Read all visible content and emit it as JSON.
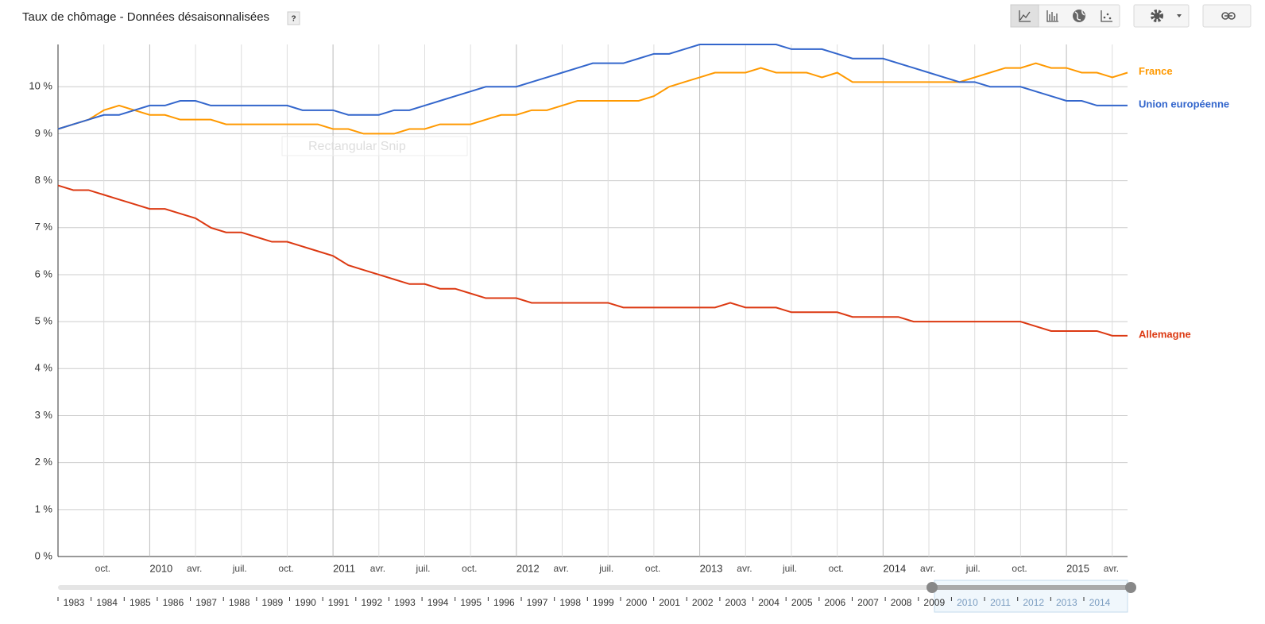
{
  "chart_data": {
    "type": "line",
    "title": "Taux de chômage - Données désaisonnalisées",
    "help": "?",
    "overlay_text": "Rectangular Snip",
    "x": [
      "2009-07",
      "2009-08",
      "2009-09",
      "2009-10",
      "2009-11",
      "2009-12",
      "2010-01",
      "2010-02",
      "2010-03",
      "2010-04",
      "2010-05",
      "2010-06",
      "2010-07",
      "2010-08",
      "2010-09",
      "2010-10",
      "2010-11",
      "2010-12",
      "2011-01",
      "2011-02",
      "2011-03",
      "2011-04",
      "2011-05",
      "2011-06",
      "2011-07",
      "2011-08",
      "2011-09",
      "2011-10",
      "2011-11",
      "2011-12",
      "2012-01",
      "2012-02",
      "2012-03",
      "2012-04",
      "2012-05",
      "2012-06",
      "2012-07",
      "2012-08",
      "2012-09",
      "2012-10",
      "2012-11",
      "2012-12",
      "2013-01",
      "2013-02",
      "2013-03",
      "2013-04",
      "2013-05",
      "2013-06",
      "2013-07",
      "2013-08",
      "2013-09",
      "2013-10",
      "2013-11",
      "2013-12",
      "2014-01",
      "2014-02",
      "2014-03",
      "2014-04",
      "2014-05",
      "2014-06",
      "2014-07",
      "2014-08",
      "2014-09",
      "2014-10",
      "2014-11",
      "2014-12",
      "2015-01",
      "2015-02",
      "2015-03",
      "2015-04",
      "2015-05"
    ],
    "series": [
      {
        "name": "France",
        "color": "#ff9900",
        "values": [
          9.1,
          9.2,
          9.3,
          9.5,
          9.6,
          9.5,
          9.4,
          9.4,
          9.3,
          9.3,
          9.3,
          9.2,
          9.2,
          9.2,
          9.2,
          9.2,
          9.2,
          9.2,
          9.1,
          9.1,
          9.0,
          9.0,
          9.0,
          9.1,
          9.1,
          9.2,
          9.2,
          9.2,
          9.3,
          9.4,
          9.4,
          9.5,
          9.5,
          9.6,
          9.7,
          9.7,
          9.7,
          9.7,
          9.7,
          9.8,
          10.0,
          10.1,
          10.2,
          10.3,
          10.3,
          10.3,
          10.4,
          10.3,
          10.3,
          10.3,
          10.2,
          10.3,
          10.1,
          10.1,
          10.1,
          10.1,
          10.1,
          10.1,
          10.1,
          10.1,
          10.2,
          10.3,
          10.4,
          10.4,
          10.5,
          10.4,
          10.4,
          10.3,
          10.3,
          10.2,
          10.3
        ]
      },
      {
        "name": "Union européenne",
        "color": "#3366cc",
        "values": [
          9.1,
          9.2,
          9.3,
          9.4,
          9.4,
          9.5,
          9.6,
          9.6,
          9.7,
          9.7,
          9.6,
          9.6,
          9.6,
          9.6,
          9.6,
          9.6,
          9.5,
          9.5,
          9.5,
          9.4,
          9.4,
          9.4,
          9.5,
          9.5,
          9.6,
          9.7,
          9.8,
          9.9,
          10.0,
          10.0,
          10.0,
          10.1,
          10.2,
          10.3,
          10.4,
          10.5,
          10.5,
          10.5,
          10.6,
          10.7,
          10.7,
          10.8,
          10.9,
          10.9,
          10.9,
          10.9,
          10.9,
          10.9,
          10.8,
          10.8,
          10.8,
          10.7,
          10.6,
          10.6,
          10.6,
          10.5,
          10.4,
          10.3,
          10.2,
          10.1,
          10.1,
          10.0,
          10.0,
          10.0,
          9.9,
          9.8,
          9.7,
          9.7,
          9.6,
          9.6,
          9.6
        ]
      },
      {
        "name": "Allemagne",
        "color": "#dc3912",
        "values": [
          7.9,
          7.8,
          7.8,
          7.7,
          7.6,
          7.5,
          7.4,
          7.4,
          7.3,
          7.2,
          7.0,
          6.9,
          6.9,
          6.8,
          6.7,
          6.7,
          6.6,
          6.5,
          6.4,
          6.2,
          6.1,
          6.0,
          5.9,
          5.8,
          5.8,
          5.7,
          5.7,
          5.6,
          5.5,
          5.5,
          5.5,
          5.4,
          5.4,
          5.4,
          5.4,
          5.4,
          5.4,
          5.3,
          5.3,
          5.3,
          5.3,
          5.3,
          5.3,
          5.3,
          5.4,
          5.3,
          5.3,
          5.3,
          5.2,
          5.2,
          5.2,
          5.2,
          5.1,
          5.1,
          5.1,
          5.1,
          5.0,
          5.0,
          5.0,
          5.0,
          5.0,
          5.0,
          5.0,
          5.0,
          4.9,
          4.8,
          4.8,
          4.8,
          4.8,
          4.7,
          4.7
        ]
      }
    ],
    "ylim": [
      0,
      10.9
    ],
    "yticks": [
      {
        "value": 0,
        "label": "0 %"
      },
      {
        "value": 1,
        "label": "1 %"
      },
      {
        "value": 2,
        "label": "2 %"
      },
      {
        "value": 3,
        "label": "3 %"
      },
      {
        "value": 4,
        "label": "4 %"
      },
      {
        "value": 5,
        "label": "5 %"
      },
      {
        "value": 6,
        "label": "6 %"
      },
      {
        "value": 7,
        "label": "7 %"
      },
      {
        "value": 8,
        "label": "8 %"
      },
      {
        "value": 9,
        "label": "9 %"
      },
      {
        "value": 10,
        "label": "10 %"
      }
    ],
    "xticks": [
      {
        "value": "2009-10",
        "label": "oct."
      },
      {
        "value": "2010-01",
        "label": "2010"
      },
      {
        "value": "2010-04",
        "label": "avr."
      },
      {
        "value": "2010-07",
        "label": "juil."
      },
      {
        "value": "2010-10",
        "label": "oct."
      },
      {
        "value": "2011-01",
        "label": "2011"
      },
      {
        "value": "2011-04",
        "label": "avr."
      },
      {
        "value": "2011-07",
        "label": "juil."
      },
      {
        "value": "2011-10",
        "label": "oct."
      },
      {
        "value": "2012-01",
        "label": "2012"
      },
      {
        "value": "2012-04",
        "label": "avr."
      },
      {
        "value": "2012-07",
        "label": "juil."
      },
      {
        "value": "2012-10",
        "label": "oct."
      },
      {
        "value": "2013-01",
        "label": "2013"
      },
      {
        "value": "2013-04",
        "label": "avr."
      },
      {
        "value": "2013-07",
        "label": "juil."
      },
      {
        "value": "2013-10",
        "label": "oct."
      },
      {
        "value": "2014-01",
        "label": "2014"
      },
      {
        "value": "2014-04",
        "label": "avr."
      },
      {
        "value": "2014-07",
        "label": "juil."
      },
      {
        "value": "2014-10",
        "label": "oct."
      },
      {
        "value": "2015-01",
        "label": "2015"
      },
      {
        "value": "2015-04",
        "label": "avr."
      }
    ],
    "grid": true,
    "timeline_years": [
      1983,
      1984,
      1985,
      1986,
      1987,
      1988,
      1989,
      1990,
      1991,
      1992,
      1993,
      1994,
      1995,
      1996,
      1997,
      1998,
      1999,
      2000,
      2001,
      2002,
      2003,
      2004,
      2005,
      2006,
      2007,
      2008,
      2009,
      2010,
      2011,
      2012,
      2013,
      2014
    ]
  }
}
